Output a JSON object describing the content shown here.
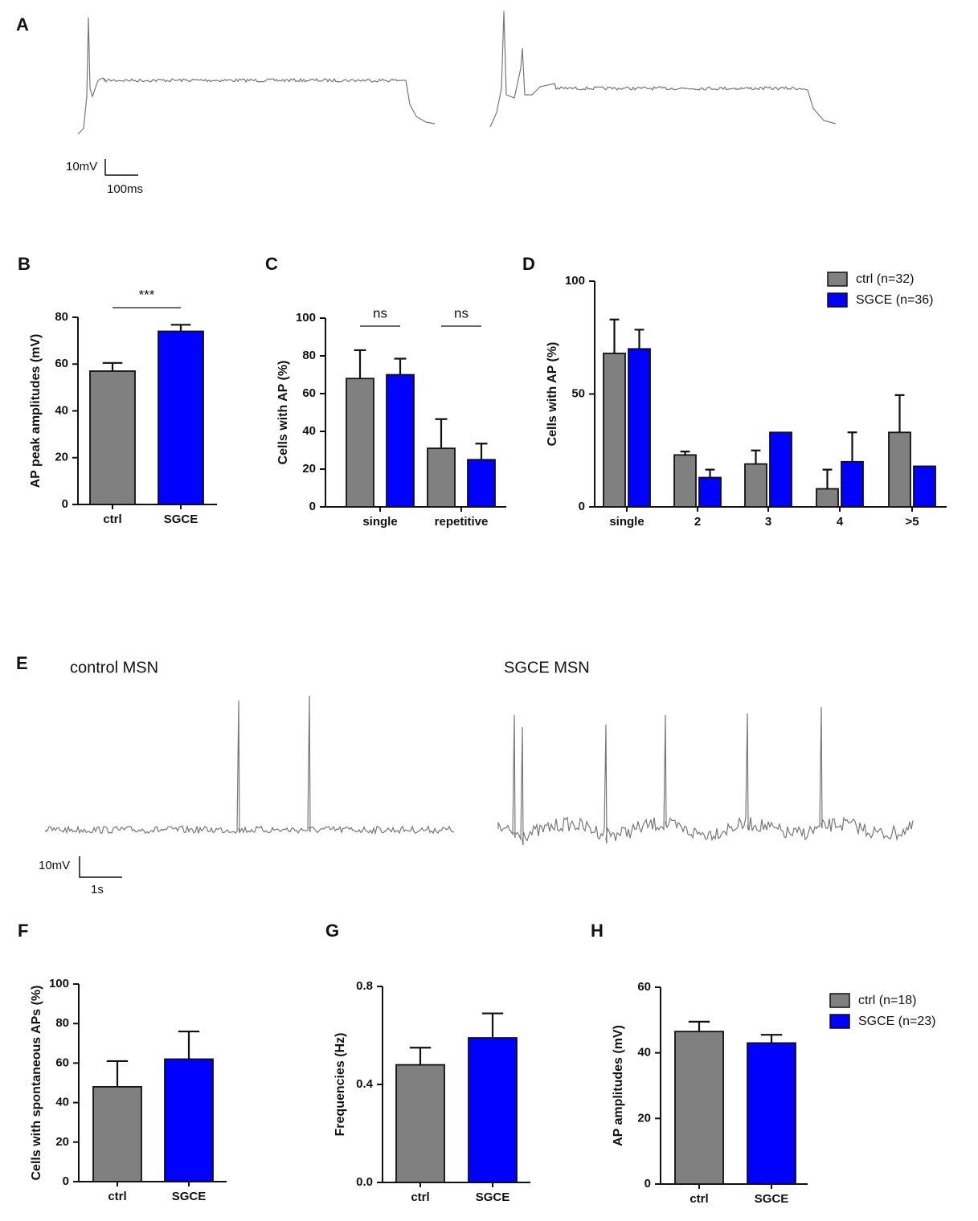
{
  "traces": [
    {
      "panel": "A",
      "scale_v": "10mV",
      "scale_t": "100ms"
    },
    {
      "panel": "E",
      "labels": [
        "control MSN",
        "SGCE MSN"
      ],
      "scale_v": "10mV",
      "scale_t": "1s"
    }
  ],
  "chart_data": [
    {
      "type": "bar",
      "panel": "B",
      "ylabel": "AP peak amplitudes (mV)",
      "categories": [
        "ctrl",
        "SGCE"
      ],
      "values": [
        57,
        74
      ],
      "errors": [
        3.5,
        2.8
      ],
      "colors": [
        "#808080",
        "#0000ff"
      ],
      "ylim": [
        0,
        80
      ],
      "yticks": [
        0,
        20,
        40,
        60,
        80
      ],
      "annotations": [
        "***"
      ]
    },
    {
      "type": "grouped_bar",
      "panel": "C",
      "ylabel": "Cells with AP (%)",
      "categories": [
        "single",
        "repetitive"
      ],
      "series": [
        {
          "color": "#808080",
          "values": [
            68,
            31
          ],
          "errors": [
            15,
            15.5
          ]
        },
        {
          "color": "#0000ff",
          "values": [
            70,
            25
          ],
          "errors": [
            8.5,
            8.5
          ]
        }
      ],
      "ylim": [
        0,
        100
      ],
      "yticks": [
        0,
        20,
        40,
        60,
        80,
        100
      ],
      "annotations": [
        "ns",
        "ns"
      ]
    },
    {
      "type": "grouped_bar",
      "panel": "D",
      "ylabel": "Cells with AP (%)",
      "categories": [
        "single",
        "2",
        "3",
        "4",
        ">5"
      ],
      "series": [
        {
          "name": "ctrl (n=32)",
          "color": "#808080",
          "values": [
            68,
            23,
            19,
            8,
            33
          ],
          "errors": [
            15,
            1.5,
            6,
            8.5,
            16.5
          ]
        },
        {
          "name": "SGCE (n=36)",
          "color": "#0000ff",
          "values": [
            70,
            13,
            33,
            20,
            18
          ],
          "errors": [
            8.5,
            3.5,
            0,
            13,
            0
          ]
        }
      ],
      "ylim": [
        0,
        100
      ],
      "yticks": [
        0,
        50,
        100
      ],
      "legend": "upper right"
    },
    {
      "type": "bar",
      "panel": "F",
      "ylabel": "Cells with spontaneous APs (%)",
      "categories": [
        "ctrl",
        "SGCE"
      ],
      "values": [
        48,
        62
      ],
      "errors": [
        13,
        14
      ],
      "colors": [
        "#808080",
        "#0000ff"
      ],
      "ylim": [
        0,
        100
      ],
      "yticks": [
        0,
        20,
        40,
        60,
        80,
        100
      ]
    },
    {
      "type": "bar",
      "panel": "G",
      "ylabel": "Frequencies (Hz)",
      "categories": [
        "ctrl",
        "SGCE"
      ],
      "values": [
        0.48,
        0.59
      ],
      "errors": [
        0.07,
        0.1
      ],
      "colors": [
        "#808080",
        "#0000ff"
      ],
      "ylim": [
        0,
        0.8
      ],
      "yticks": [
        {
          "value": 0,
          "label": "0.0"
        },
        0.4,
        0.8
      ]
    },
    {
      "type": "grouped_legend_bar",
      "panel": "H",
      "ylabel": "AP amplitudes (mV)",
      "categories": [
        "ctrl",
        "SGCE"
      ],
      "series": [
        {
          "name": "ctrl (n=18)",
          "color": "#808080",
          "values": [
            46.5,
            null
          ],
          "errors": [
            3,
            null
          ]
        },
        {
          "name": "SGCE (n=23)",
          "color": "#0000ff",
          "values": [
            null,
            43
          ],
          "errors": [
            null,
            2.5
          ]
        }
      ],
      "ylim": [
        0,
        60
      ],
      "yticks": [
        0,
        20,
        40,
        60
      ],
      "legend": "upper right"
    }
  ]
}
